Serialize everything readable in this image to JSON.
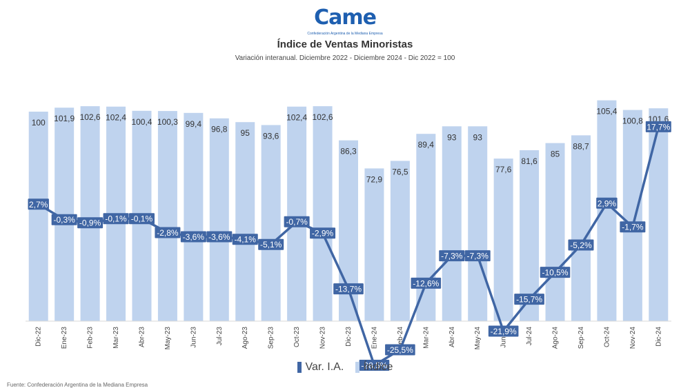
{
  "logo": {
    "text": "Came",
    "subtext": "Confederación Argentina de la Mediana Empresa"
  },
  "source_text": "Fuente: Confederación Argentina de la Mediana Empresa",
  "chart_data": {
    "type": "bar",
    "title": "Índice de Ventas Minoristas",
    "subtitle": "Variación interanual. Diciembre 2022 - Diciembre 2024 - Dic 2022 = 100",
    "categories": [
      "Dic-22",
      "Ene-23",
      "Feb-23",
      "Mar-23",
      "Abr-23",
      "May-23",
      "Jun-23",
      "Jul-23",
      "Ago-23",
      "Sep-23",
      "Oct-23",
      "Nov-23",
      "Dic-23",
      "Ene-24",
      "Feb-24",
      "Mar-24",
      "Abr-24",
      "May-24",
      "Jun-24",
      "Jul-24",
      "Ago-24",
      "Sep-24",
      "Oct-24",
      "Nov-24",
      "Dic-24"
    ],
    "series": [
      {
        "name": "Índice",
        "type": "bar",
        "color": "#bfd3ee",
        "values": [
          100,
          101.9,
          102.6,
          102.4,
          100.4,
          100.3,
          99.4,
          96.8,
          95,
          93.6,
          102.4,
          102.6,
          86.3,
          72.9,
          76.5,
          89.4,
          93,
          93,
          77.6,
          81.6,
          85,
          88.7,
          105.4,
          100.8,
          101.6
        ],
        "labels": [
          "100",
          "101,9",
          "102,6",
          "102,4",
          "100,4",
          "100,3",
          "99,4",
          "96,8",
          "95",
          "93,6",
          "102,4",
          "102,6",
          "86,3",
          "72,9",
          "76,5",
          "89,4",
          "93",
          "93",
          "77,6",
          "81,6",
          "85",
          "88,7",
          "105,4",
          "100,8",
          "101,6"
        ]
      },
      {
        "name": "Var. I.A.",
        "type": "line",
        "color": "#4066a4",
        "values": [
          2.7,
          -0.3,
          -0.9,
          -0.1,
          -0.1,
          -2.8,
          -3.6,
          -3.6,
          -4.1,
          -5.1,
          -0.7,
          -2.9,
          -13.7,
          -28.5,
          -25.5,
          -12.6,
          -7.3,
          -7.3,
          -21.9,
          -15.7,
          -10.5,
          -5.2,
          2.9,
          -1.7,
          17.7
        ],
        "labels": [
          "2,7%",
          "-0,3%",
          "-0,9%",
          "-0,1%",
          "-0,1%",
          "-2,8%",
          "-3,6%",
          "-3,6%",
          "-4,1%",
          "-5,1%",
          "-0,7%",
          "-2,9%",
          "-13,7%",
          "-28,5%",
          "-25,5%",
          "-12,6%",
          "-7,3%",
          "-7,3%",
          "-21,9%",
          "-15,7%",
          "-10,5%",
          "-5,2%",
          "2,9%",
          "-1,7%",
          "17,7%"
        ]
      }
    ],
    "ylim_bar": [
      0,
      110
    ],
    "ylim_line": [
      -34,
      22
    ],
    "grid": false,
    "legend": "bottom-center"
  }
}
